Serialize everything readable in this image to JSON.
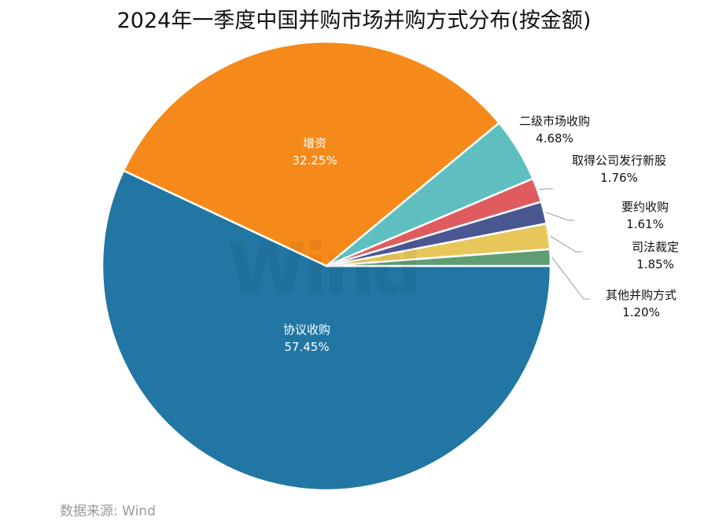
{
  "title": "2024年一季度中国并购市场并购方式分布(按金额)",
  "source": "数据来源: Wind",
  "watermark": "Wind",
  "chart_data": {
    "type": "pie",
    "title": "2024年一季度中国并购市场并购方式分布(按金额)",
    "categories": [
      "协议收购",
      "增资",
      "二级市场收购",
      "取得公司发行新股",
      "要约收购",
      "司法裁定",
      "其他并购方式"
    ],
    "values": [
      57.45,
      32.25,
      4.68,
      1.76,
      1.61,
      1.85,
      1.2
    ],
    "labels": [
      "57.45%",
      "32.25%",
      "4.68%",
      "1.76%",
      "1.61%",
      "1.85%",
      "1.20%"
    ],
    "colors": [
      "#2176a3",
      "#f58a1b",
      "#5fbfbf",
      "#e05b5e",
      "#4a5790",
      "#e8c75a",
      "#5f9e74"
    ],
    "legend": "none (data labels with leader lines)"
  },
  "labels": [
    {
      "name": "协议收购",
      "pct": "57.45%"
    },
    {
      "name": "增资",
      "pct": "32.25%"
    },
    {
      "name": "二级市场收购",
      "pct": "4.68%"
    },
    {
      "name": "取得公司发行新股",
      "pct": "1.76%"
    },
    {
      "name": "要约收购",
      "pct": "1.61%"
    },
    {
      "name": "司法裁定",
      "pct": "1.85%"
    },
    {
      "name": "其他并购方式",
      "pct": "1.20%"
    }
  ]
}
